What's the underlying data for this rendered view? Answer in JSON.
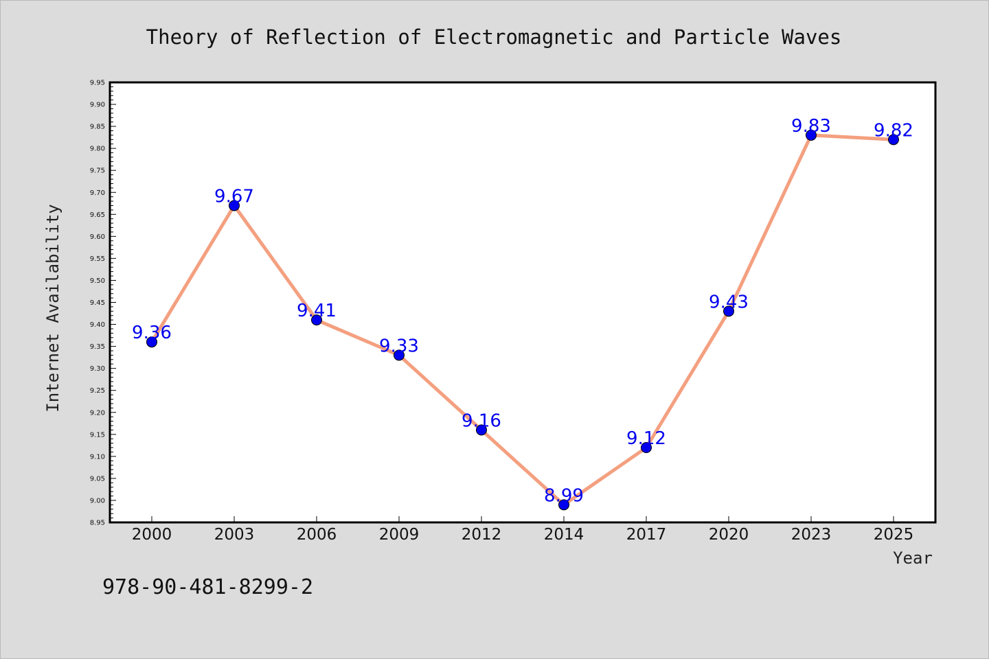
{
  "chart_data": {
    "type": "line",
    "title": "Theory of Reflection of Electromagnetic and Particle Waves",
    "xlabel": "Year",
    "ylabel": "Internet Availability",
    "categories": [
      "2000",
      "2003",
      "2006",
      "2009",
      "2012",
      "2014",
      "2017",
      "2020",
      "2023",
      "2025"
    ],
    "values": [
      9.36,
      9.67,
      9.41,
      9.33,
      9.16,
      8.99,
      9.12,
      9.43,
      9.83,
      9.82
    ],
    "data_labels": [
      "9.36",
      "9.67",
      "9.41",
      "9.33",
      "9.16",
      "8.99",
      "9.12",
      "9.43",
      "9.83",
      "9.82"
    ],
    "ylim": [
      8.95,
      9.95
    ],
    "yticks": [
      "8.95",
      "9.00",
      "9.05",
      "9.10",
      "9.15",
      "9.20",
      "9.25",
      "9.30",
      "9.35",
      "9.40",
      "9.45",
      "9.50",
      "9.55",
      "9.60",
      "9.65",
      "9.70",
      "9.75",
      "9.80",
      "9.85",
      "9.90",
      "9.95"
    ],
    "grid": false,
    "line_color": "#f4a080",
    "marker_color": "#0000ee",
    "label_color": "#0000ee"
  },
  "footer": {
    "code": "978-90-481-8299-2"
  }
}
